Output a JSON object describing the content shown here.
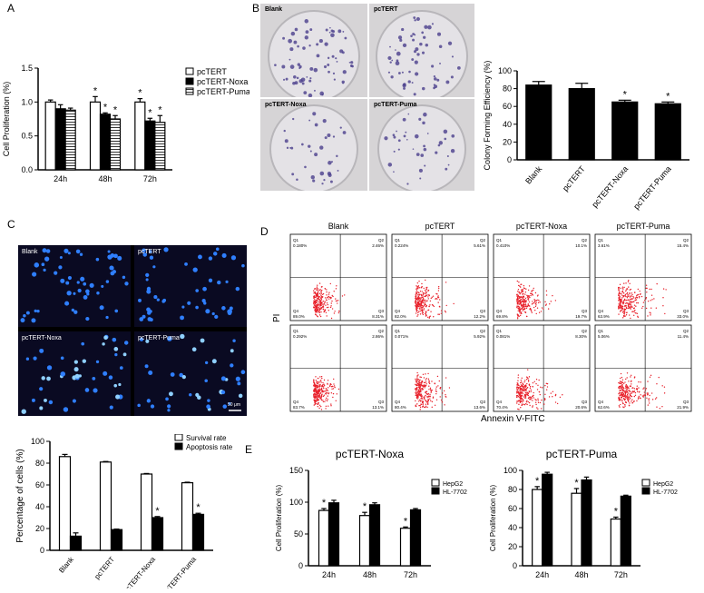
{
  "panels": {
    "A": {
      "letter": "A"
    },
    "B": {
      "letter": "B",
      "dish_labels": [
        "Blank",
        "pcTERT",
        "pcTERT-Noxa",
        "pcTERT-Puma"
      ]
    },
    "C": {
      "letter": "C",
      "image_labels": [
        "Blank",
        "pcTERT",
        "pcTERT-Noxa",
        "pcTERT-Puma"
      ],
      "scale_bar": "50 μm"
    },
    "D": {
      "letter": "D",
      "col_titles": [
        "Blank",
        "pcTERT",
        "pcTERT-Noxa",
        "pcTERT-Puma"
      ],
      "xlabel": "Annexin V-FITC",
      "ylabel": "PI",
      "quadrants_row1": [
        {
          "q1": "0.180%",
          "q2": "2.46%",
          "q3": "8.31%",
          "q4": "89.0%"
        },
        {
          "q1": "0.224%",
          "q2": "5.61%",
          "q3": "12.2%",
          "q4": "82.0%"
        },
        {
          "q1": "0.410%",
          "q2": "10.1%",
          "q3": "19.7%",
          "q4": "69.8%"
        },
        {
          "q1": "3.61%",
          "q2": "15.4%",
          "q3": "33.0%",
          "q4": "63.9%"
        }
      ],
      "quadrants_row2": [
        {
          "q1": "0.292%",
          "q2": "2.86%",
          "q3": "13.1%",
          "q4": "83.7%"
        },
        {
          "q1": "0.071%",
          "q2": "5.92%",
          "q3": "13.6%",
          "q4": "80.4%"
        },
        {
          "q1": "0.081%",
          "q2": "8.30%",
          "q3": "20.6%",
          "q4": "70.4%"
        },
        {
          "q1": "5.06%",
          "q2": "11.4%",
          "q3": "21.9%",
          "q4": "62.6%"
        }
      ]
    },
    "E": {
      "letter": "E"
    }
  },
  "chart_data": [
    {
      "id": "A",
      "type": "bar",
      "categories": [
        "24h",
        "48h",
        "72h"
      ],
      "series": [
        {
          "name": "pcTERT",
          "values": [
            1.0,
            1.0,
            1.0
          ],
          "errors": [
            0.03,
            0.08,
            0.05
          ],
          "fill": "#ffffff"
        },
        {
          "name": "pcTERT-Noxa",
          "values": [
            0.9,
            0.82,
            0.72
          ],
          "errors": [
            0.06,
            0.02,
            0.04
          ],
          "fill": "#000000"
        },
        {
          "name": "pcTERT-Puma",
          "values": [
            0.88,
            0.75,
            0.7
          ],
          "errors": [
            0.03,
            0.05,
            0.1
          ],
          "fill": "hatch"
        }
      ],
      "sig": [
        [
          false,
          true,
          true
        ],
        [
          false,
          true,
          true
        ],
        [
          false,
          true,
          true
        ]
      ],
      "ylabel": "Cell Proliferation (%)",
      "ylim": [
        0,
        1.5
      ],
      "yticks": [
        0.0,
        0.5,
        1.0,
        1.5
      ],
      "legend_position": "right"
    },
    {
      "id": "B",
      "type": "bar",
      "categories": [
        "Blank",
        "pcTERT",
        "pcTERT-Noxa",
        "pcTERT-Puma"
      ],
      "values": [
        84,
        80,
        65,
        63
      ],
      "errors": [
        4,
        6,
        2,
        2
      ],
      "sig": [
        false,
        false,
        true,
        true
      ],
      "ylabel": "Colony Forming Efficiency (%)",
      "ylim": [
        0,
        100
      ],
      "yticks": [
        0,
        20,
        40,
        60,
        80,
        100
      ]
    },
    {
      "id": "C",
      "type": "bar",
      "categories": [
        "Blank",
        "pcTERT",
        "pcTERT-Noxa",
        "pcTERT-Puma"
      ],
      "series": [
        {
          "name": "Survival rate",
          "values": [
            86,
            81,
            70,
            62
          ],
          "errors": [
            2,
            0.5,
            0.5,
            0.5
          ],
          "fill": "#ffffff"
        },
        {
          "name": "Apoptosis rate",
          "values": [
            13,
            19,
            30,
            33
          ],
          "errors": [
            3,
            0.5,
            1,
            1
          ],
          "fill": "#000000"
        }
      ],
      "sig": [
        [
          false,
          false,
          false,
          false
        ],
        [
          false,
          false,
          true,
          true
        ]
      ],
      "ylabel": "Percentage of cells (%)",
      "ylim": [
        0,
        100
      ],
      "yticks": [
        0,
        20,
        40,
        60,
        80,
        100
      ],
      "legend_position": "top-right"
    },
    {
      "id": "E1",
      "type": "bar",
      "title": "pcTERT-Noxa",
      "categories": [
        "24h",
        "48h",
        "72h"
      ],
      "series": [
        {
          "name": "HepG2",
          "values": [
            87,
            79,
            59
          ],
          "errors": [
            3,
            5,
            2
          ],
          "fill": "#ffffff"
        },
        {
          "name": "HL-7702",
          "values": [
            99,
            96,
            88
          ],
          "errors": [
            4,
            3,
            2
          ],
          "fill": "#000000"
        }
      ],
      "sig": [
        [
          true,
          true,
          true
        ],
        [
          false,
          false,
          false
        ]
      ],
      "ylabel": "Cell Proliferation (%)",
      "ylim": [
        0,
        150
      ],
      "yticks": [
        0,
        50,
        100,
        150
      ],
      "legend_position": "top-right"
    },
    {
      "id": "E2",
      "type": "bar",
      "title": "pcTERT-Puma",
      "categories": [
        "24h",
        "48h",
        "72h"
      ],
      "series": [
        {
          "name": "HepG2",
          "values": [
            80,
            76,
            49
          ],
          "errors": [
            3,
            5,
            2
          ],
          "fill": "#ffffff"
        },
        {
          "name": "HL-7702",
          "values": [
            96,
            90,
            73
          ],
          "errors": [
            2,
            3,
            1
          ],
          "fill": "#000000"
        }
      ],
      "sig": [
        [
          true,
          true,
          true
        ],
        [
          false,
          false,
          false
        ]
      ],
      "ylabel": "Cell Proliferation (%)",
      "ylim": [
        0,
        100
      ],
      "yticks": [
        0,
        20,
        40,
        60,
        80,
        100
      ],
      "legend_position": "top-right"
    }
  ]
}
